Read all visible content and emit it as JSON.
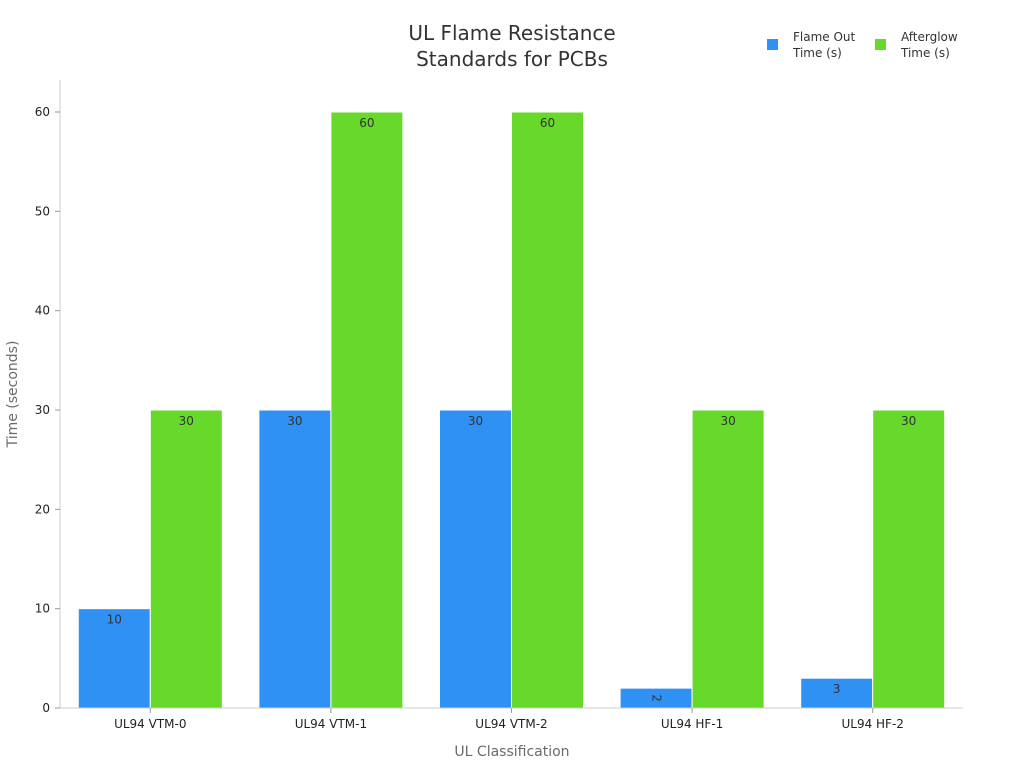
{
  "chart_data": {
    "type": "bar",
    "title": "UL Flame Resistance Standards for PCBs",
    "title_lines": [
      "UL Flame Resistance",
      "Standards for PCBs"
    ],
    "xlabel": "UL Classification",
    "ylabel": "Time (seconds)",
    "categories": [
      "UL94 VTM-0",
      "UL94 VTM-1",
      "UL94 VTM-2",
      "UL94 HF-1",
      "UL94 HF-2"
    ],
    "series": [
      {
        "name": "Flame Out Time (s)",
        "legend_lines": [
          "Flame Out",
          "Time (s)"
        ],
        "color": "#2f91f4",
        "values": [
          10,
          30,
          30,
          2,
          3
        ]
      },
      {
        "name": "Afterglow Time (s)",
        "legend_lines": [
          "Afterglow",
          "Time (s)"
        ],
        "color": "#66d92a",
        "values": [
          30,
          60,
          60,
          30,
          30
        ]
      }
    ],
    "ylim": [
      0,
      63
    ],
    "yticks": [
      0,
      10,
      20,
      30,
      40,
      50,
      60
    ],
    "grid": false,
    "legend_position": "top-right",
    "data_labels": true
  }
}
